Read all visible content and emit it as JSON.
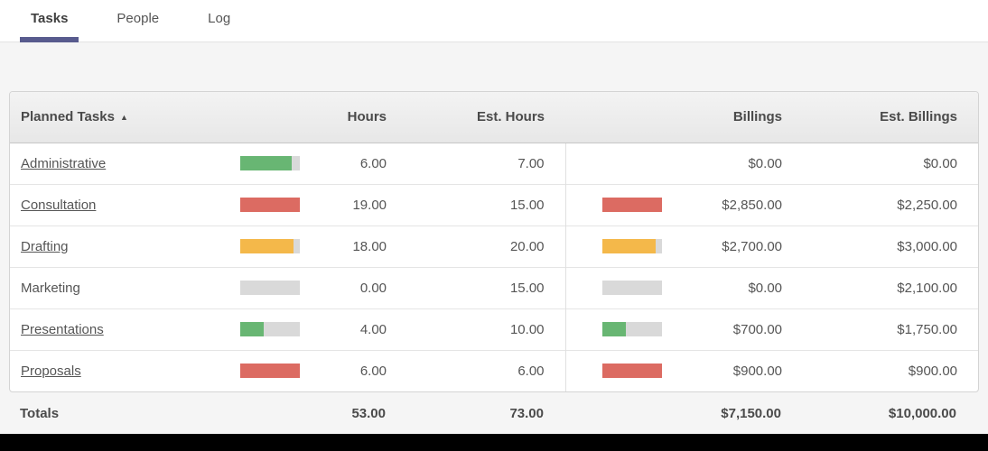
{
  "tabs": [
    {
      "label": "Tasks",
      "active": true
    },
    {
      "label": "People",
      "active": false
    },
    {
      "label": "Log",
      "active": false
    }
  ],
  "colors": {
    "green": "#68b673",
    "red": "#dc6b62",
    "orange": "#f4b84a",
    "bar_track": "#d9d9d9",
    "active_tab_underline": "#585b8e"
  },
  "table": {
    "header": {
      "task": "Planned Tasks",
      "sort_glyph": "▲",
      "hours": "Hours",
      "est_hours": "Est. Hours",
      "billings": "Billings",
      "est_billings": "Est. Billings"
    },
    "rows": [
      {
        "task": "Administrative",
        "is_link": true,
        "hours": "6.00",
        "est_hours": "7.00",
        "billings": "$0.00",
        "est_billings": "$0.00",
        "hours_bar": {
          "percent": 86,
          "color": "green"
        },
        "billings_bar": null
      },
      {
        "task": "Consultation",
        "is_link": true,
        "hours": "19.00",
        "est_hours": "15.00",
        "billings": "$2,850.00",
        "est_billings": "$2,250.00",
        "hours_bar": {
          "percent": 100,
          "color": "red"
        },
        "billings_bar": {
          "percent": 100,
          "color": "red"
        }
      },
      {
        "task": "Drafting",
        "is_link": true,
        "hours": "18.00",
        "est_hours": "20.00",
        "billings": "$2,700.00",
        "est_billings": "$3,000.00",
        "hours_bar": {
          "percent": 90,
          "color": "orange"
        },
        "billings_bar": {
          "percent": 90,
          "color": "orange"
        }
      },
      {
        "task": "Marketing",
        "is_link": false,
        "hours": "0.00",
        "est_hours": "15.00",
        "billings": "$0.00",
        "est_billings": "$2,100.00",
        "hours_bar": {
          "percent": 0,
          "color": "green"
        },
        "billings_bar": {
          "percent": 0,
          "color": "green"
        }
      },
      {
        "task": "Presentations",
        "is_link": true,
        "hours": "4.00",
        "est_hours": "10.00",
        "billings": "$700.00",
        "est_billings": "$1,750.00",
        "hours_bar": {
          "percent": 40,
          "color": "green"
        },
        "billings_bar": {
          "percent": 40,
          "color": "green"
        }
      },
      {
        "task": "Proposals",
        "is_link": true,
        "hours": "6.00",
        "est_hours": "6.00",
        "billings": "$900.00",
        "est_billings": "$900.00",
        "hours_bar": {
          "percent": 100,
          "color": "red"
        },
        "billings_bar": {
          "percent": 100,
          "color": "red"
        }
      }
    ],
    "totals": {
      "label": "Totals",
      "hours": "53.00",
      "est_hours": "73.00",
      "billings": "$7,150.00",
      "est_billings": "$10,000.00"
    }
  }
}
